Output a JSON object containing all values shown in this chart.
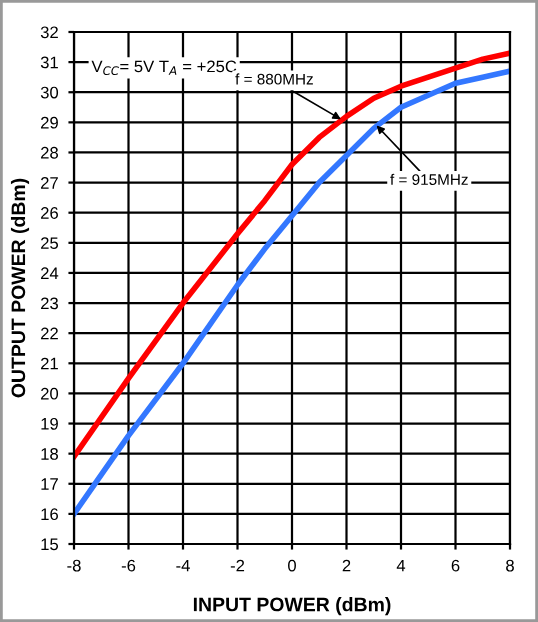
{
  "chart_data": {
    "type": "line",
    "xlabel": "INPUT POWER (dBm)",
    "ylabel": "OUTPUT POWER (dBm)",
    "x": [
      -8,
      -6,
      -4,
      -2,
      -1,
      0,
      1,
      2,
      3,
      4,
      5,
      6,
      7,
      8
    ],
    "series": [
      {
        "color": "#ff0000",
        "values": [
          17.9,
          20.5,
          23.0,
          25.3,
          26.4,
          27.6,
          28.5,
          29.2,
          29.8,
          30.2,
          30.5,
          30.8,
          31.1,
          31.3
        ]
      },
      {
        "color": "#3377ff",
        "values": [
          16.0,
          18.6,
          21.0,
          23.6,
          24.8,
          25.9,
          27.0,
          27.9,
          28.8,
          29.5,
          29.9,
          30.3,
          30.5,
          30.7
        ]
      }
    ],
    "xlim": [
      -8,
      8
    ],
    "xticks": [
      -8,
      -6,
      -4,
      -2,
      0,
      2,
      4,
      6,
      8
    ],
    "ylim": [
      15,
      32
    ],
    "yticks": [
      15,
      16,
      17,
      18,
      19,
      20,
      21,
      22,
      23,
      24,
      25,
      26,
      27,
      28,
      29,
      30,
      31,
      32
    ],
    "grid": true,
    "legend": false,
    "marker": "none",
    "line_style": "solid",
    "annotations": [
      "V$_{CC}$= 5V T$_{A}$ = +25C",
      {
        "text": "f = 880MHz",
        "x": 1.8,
        "y": 29.1
      },
      {
        "text": "f = 915MHz",
        "x": 3.1,
        "y": 28.9
      }
    ]
  }
}
